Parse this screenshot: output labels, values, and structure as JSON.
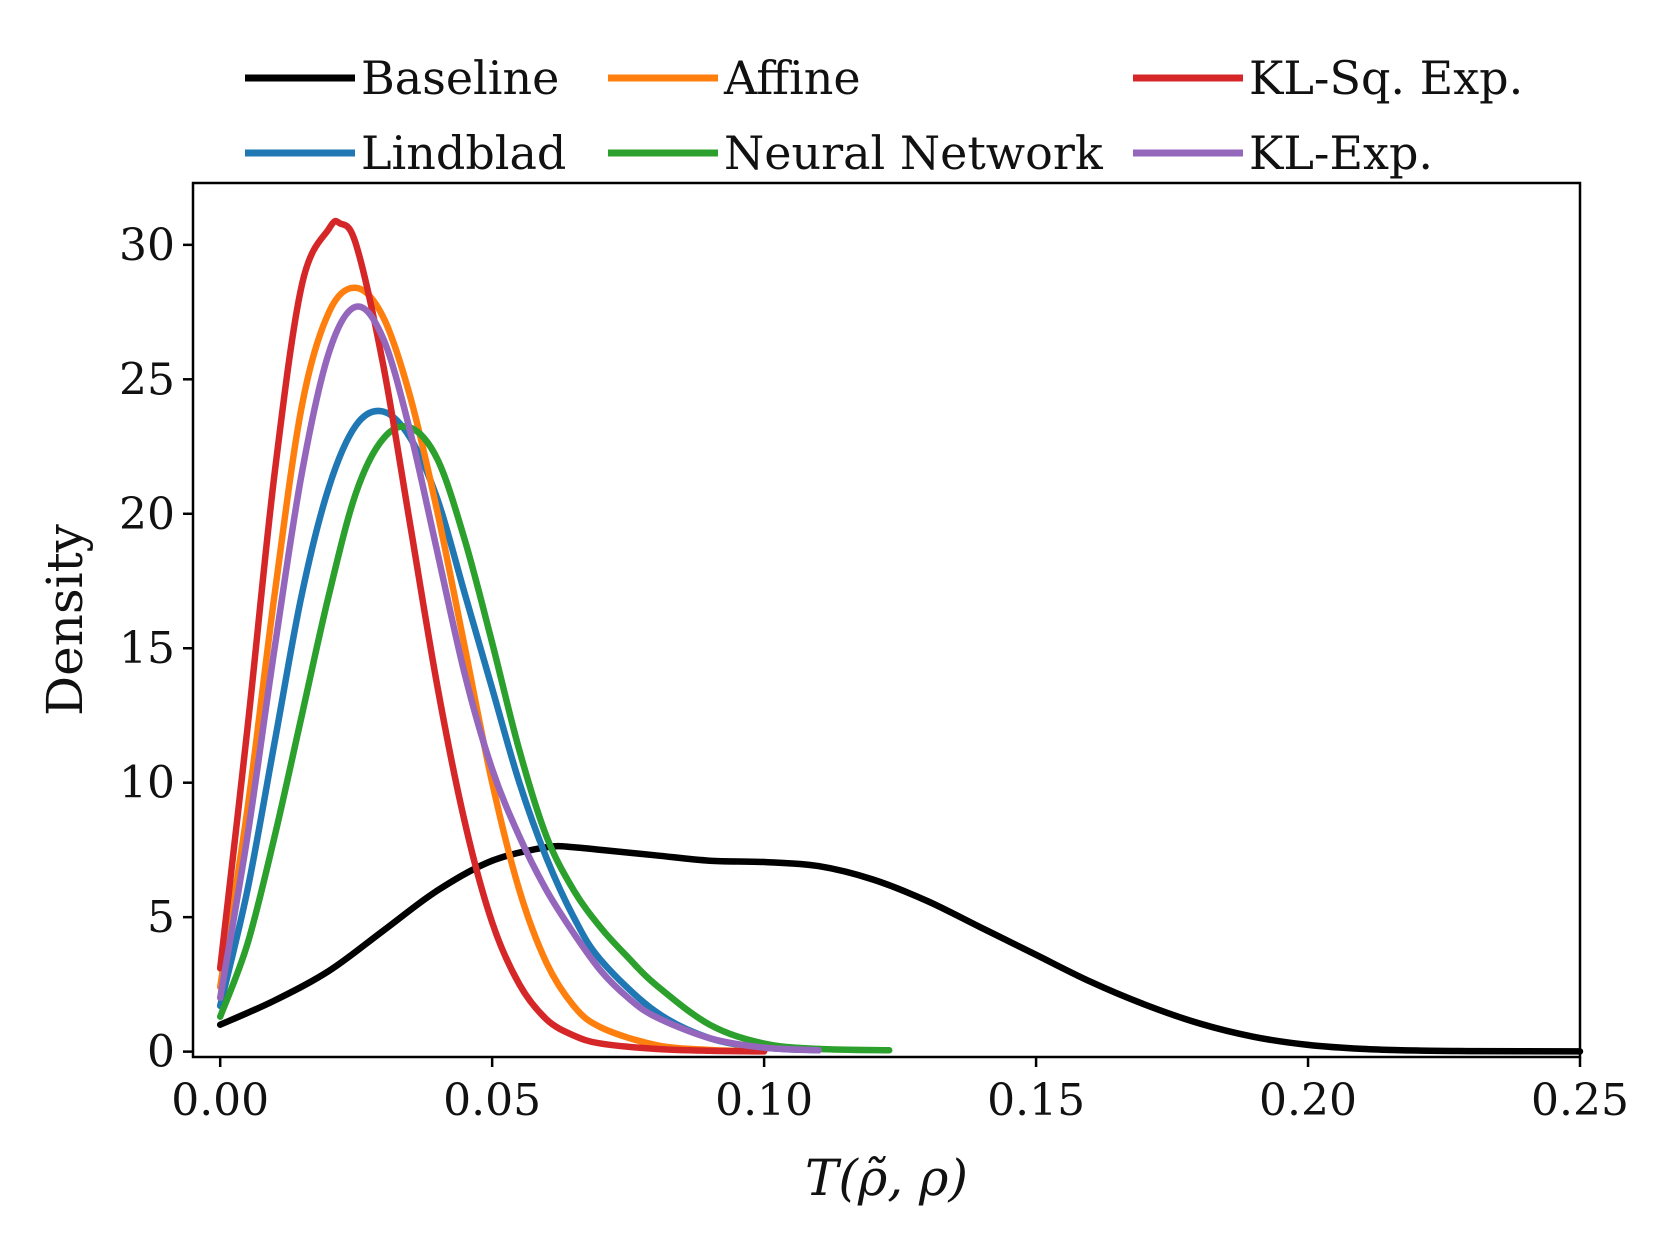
{
  "chart_data": {
    "type": "line",
    "title": "",
    "xlabel": "T(ρ̃, ρ)",
    "ylabel": "Density",
    "xlim": [
      -0.005,
      0.25
    ],
    "ylim": [
      -0.2,
      32.3
    ],
    "xticks": [
      0.0,
      0.05,
      0.1,
      0.15,
      0.2,
      0.25
    ],
    "xtick_labels": [
      "0.00",
      "0.05",
      "0.10",
      "0.15",
      "0.20",
      "0.25"
    ],
    "yticks": [
      0,
      5,
      10,
      15,
      20,
      25,
      30
    ],
    "ytick_labels": [
      "0",
      "5",
      "10",
      "15",
      "20",
      "25",
      "30"
    ],
    "grid": false,
    "legend_position": "top, above plot, 3 columns",
    "series": [
      {
        "name": "Baseline",
        "color": "#000000",
        "x": [
          0.0,
          0.01,
          0.02,
          0.03,
          0.04,
          0.05,
          0.06,
          0.065,
          0.07,
          0.08,
          0.09,
          0.1,
          0.11,
          0.12,
          0.13,
          0.14,
          0.15,
          0.16,
          0.17,
          0.18,
          0.19,
          0.2,
          0.21,
          0.22,
          0.23,
          0.25
        ],
        "y": [
          1.0,
          1.9,
          3.0,
          4.5,
          6.0,
          7.1,
          7.6,
          7.6,
          7.5,
          7.3,
          7.1,
          7.05,
          6.9,
          6.4,
          5.6,
          4.6,
          3.6,
          2.6,
          1.75,
          1.05,
          0.55,
          0.25,
          0.1,
          0.04,
          0.02,
          0.01
        ]
      },
      {
        "name": "Lindblad",
        "color": "#1f77b4",
        "x": [
          0.0,
          0.005,
          0.01,
          0.015,
          0.02,
          0.025,
          0.03,
          0.035,
          0.04,
          0.045,
          0.05,
          0.055,
          0.06,
          0.065,
          0.07,
          0.08,
          0.09,
          0.1,
          0.11
        ],
        "y": [
          1.7,
          6.0,
          11.5,
          17.0,
          21.0,
          23.3,
          23.8,
          22.8,
          20.5,
          17.0,
          13.5,
          10.0,
          7.2,
          5.0,
          3.4,
          1.5,
          0.5,
          0.15,
          0.05
        ]
      },
      {
        "name": "Affine",
        "color": "#ff7f0e",
        "x": [
          0.0,
          0.005,
          0.01,
          0.015,
          0.02,
          0.025,
          0.03,
          0.035,
          0.04,
          0.045,
          0.05,
          0.055,
          0.06,
          0.065,
          0.07,
          0.08,
          0.09,
          0.1
        ],
        "y": [
          2.4,
          9.0,
          17.0,
          24.0,
          27.5,
          28.4,
          27.3,
          24.3,
          20.0,
          15.0,
          10.0,
          6.0,
          3.3,
          1.7,
          0.9,
          0.25,
          0.06,
          0.02
        ]
      },
      {
        "name": "Neural Network",
        "color": "#2ca02c",
        "x": [
          0.0,
          0.005,
          0.01,
          0.015,
          0.02,
          0.025,
          0.03,
          0.035,
          0.04,
          0.045,
          0.05,
          0.055,
          0.06,
          0.065,
          0.07,
          0.075,
          0.08,
          0.09,
          0.1,
          0.11,
          0.123
        ],
        "y": [
          1.3,
          4.0,
          8.0,
          12.5,
          17.0,
          20.8,
          22.8,
          23.2,
          22.0,
          19.0,
          15.2,
          11.2,
          8.0,
          6.0,
          4.6,
          3.5,
          2.5,
          1.0,
          0.3,
          0.1,
          0.05
        ]
      },
      {
        "name": "KL-Sq. Exp.",
        "color": "#d62728",
        "x": [
          0.0,
          0.005,
          0.01,
          0.015,
          0.02,
          0.022,
          0.025,
          0.03,
          0.035,
          0.04,
          0.045,
          0.05,
          0.055,
          0.06,
          0.065,
          0.07,
          0.08,
          0.09,
          0.1
        ],
        "y": [
          3.1,
          12.0,
          21.5,
          28.5,
          30.6,
          30.8,
          30.0,
          25.5,
          19.5,
          13.5,
          8.5,
          4.8,
          2.5,
          1.2,
          0.6,
          0.3,
          0.1,
          0.03,
          0.01
        ]
      },
      {
        "name": "KL-Exp.",
        "color": "#9467bd",
        "x": [
          0.0,
          0.005,
          0.01,
          0.015,
          0.02,
          0.025,
          0.03,
          0.035,
          0.04,
          0.045,
          0.05,
          0.055,
          0.06,
          0.065,
          0.07,
          0.075,
          0.08,
          0.09,
          0.1,
          0.11
        ],
        "y": [
          2.0,
          8.0,
          15.0,
          21.5,
          26.0,
          27.7,
          26.5,
          23.0,
          18.5,
          14.0,
          10.5,
          8.0,
          6.0,
          4.4,
          3.0,
          2.0,
          1.3,
          0.5,
          0.15,
          0.05
        ]
      }
    ],
    "legend_order": [
      "Baseline",
      "Affine",
      "KL-Sq. Exp.",
      "Lindblad",
      "Neural Network",
      "KL-Exp."
    ]
  }
}
